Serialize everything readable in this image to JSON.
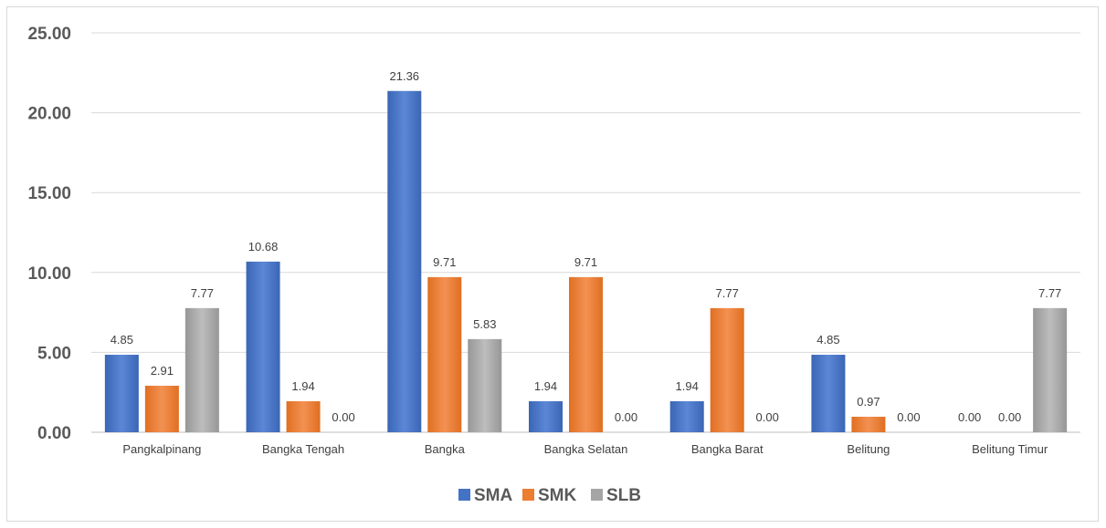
{
  "chart_data": {
    "type": "bar",
    "title": "",
    "xlabel": "",
    "ylabel": "",
    "ylim": [
      0,
      25
    ],
    "yticks": [
      "0.00",
      "5.00",
      "10.00",
      "15.00",
      "20.00",
      "25.00"
    ],
    "categories": [
      "Pangkalpinang",
      "Bangka Tengah",
      "Bangka",
      "Bangka Selatan",
      "Bangka Barat",
      "Belitung",
      "Belitung Timur"
    ],
    "series": [
      {
        "name": "SMA",
        "color": "#4472c4",
        "values": [
          4.85,
          10.68,
          21.36,
          1.94,
          1.94,
          4.85,
          0.0
        ],
        "labels": [
          "4.85",
          "10.68",
          "21.36",
          "1.94",
          "1.94",
          "4.85",
          "0.00"
        ]
      },
      {
        "name": "SMK",
        "color": "#ed7d31",
        "values": [
          2.91,
          1.94,
          9.71,
          9.71,
          7.77,
          0.97,
          0.0
        ],
        "labels": [
          "2.91",
          "1.94",
          "9.71",
          "9.71",
          "7.77",
          "0.97",
          "0.00"
        ]
      },
      {
        "name": "SLB",
        "color": "#a5a5a5",
        "values": [
          7.77,
          0.0,
          5.83,
          0.0,
          0.0,
          0.0,
          7.77
        ],
        "labels": [
          "7.77",
          "0.00",
          "5.83",
          "0.00",
          "0.00",
          "0.00",
          "7.77"
        ]
      }
    ],
    "grid": true,
    "legend_position": "bottom"
  }
}
